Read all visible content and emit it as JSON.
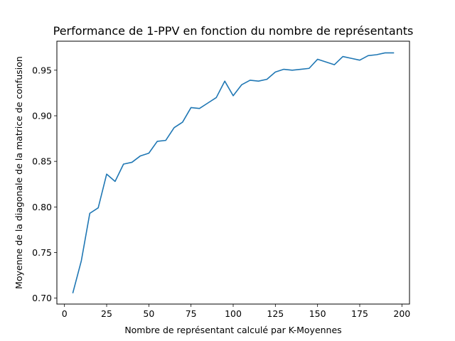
{
  "chart_data": {
    "type": "line",
    "title": "Performance de 1-PPV en fonction du nombre de représentants",
    "xlabel": "Nombre de représentant calculé par K-Moyennes",
    "ylabel": "Moyenne de la diagonale de la matrice de confusion",
    "xlim": [
      -4.5,
      204.5
    ],
    "ylim": [
      0.6935,
      0.9818
    ],
    "xticks": [
      0,
      25,
      50,
      75,
      100,
      125,
      150,
      175,
      200
    ],
    "yticks": [
      0.7,
      0.75,
      0.8,
      0.85,
      0.9,
      0.95
    ],
    "ytick_labels": [
      "0.70",
      "0.75",
      "0.80",
      "0.85",
      "0.90",
      "0.95"
    ],
    "grid": false,
    "color": "#1f77b4",
    "series": [
      {
        "x": [
          5,
          10,
          15,
          20,
          25,
          30,
          35,
          40,
          45,
          50,
          55,
          60,
          65,
          70,
          75,
          80,
          85,
          90,
          95,
          100,
          105,
          110,
          115,
          120,
          125,
          130,
          135,
          140,
          145,
          150,
          155,
          160,
          165,
          170,
          175,
          180,
          185,
          190,
          195
        ],
        "y": [
          0.706,
          0.741,
          0.793,
          0.799,
          0.836,
          0.828,
          0.847,
          0.849,
          0.856,
          0.859,
          0.872,
          0.873,
          0.887,
          0.893,
          0.909,
          0.908,
          0.914,
          0.92,
          0.938,
          0.922,
          0.934,
          0.939,
          0.938,
          0.94,
          0.948,
          0.951,
          0.95,
          0.951,
          0.952,
          0.962,
          0.959,
          0.956,
          0.965,
          0.963,
          0.961,
          0.966,
          0.967,
          0.969,
          0.969
        ]
      }
    ]
  }
}
